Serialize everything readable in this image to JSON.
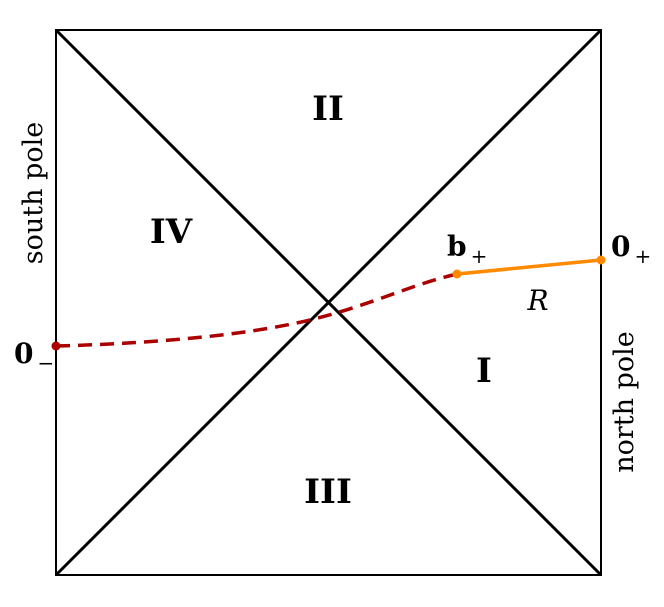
{
  "regions": {
    "I": "I",
    "II": "II",
    "III": "III",
    "IV": "IV"
  },
  "poles": {
    "left": "south pole",
    "right": "north pole"
  },
  "points": {
    "zero_minus": {
      "base": "0",
      "sub": "−"
    },
    "zero_plus": {
      "base": "0",
      "sub": "+"
    },
    "b_plus": {
      "base": "b",
      "sub": "+"
    }
  },
  "curve_label": "R",
  "colors": {
    "frame": "#000000",
    "dashed_curve": "#aa0000",
    "solid_curve": "#ff8a00"
  }
}
